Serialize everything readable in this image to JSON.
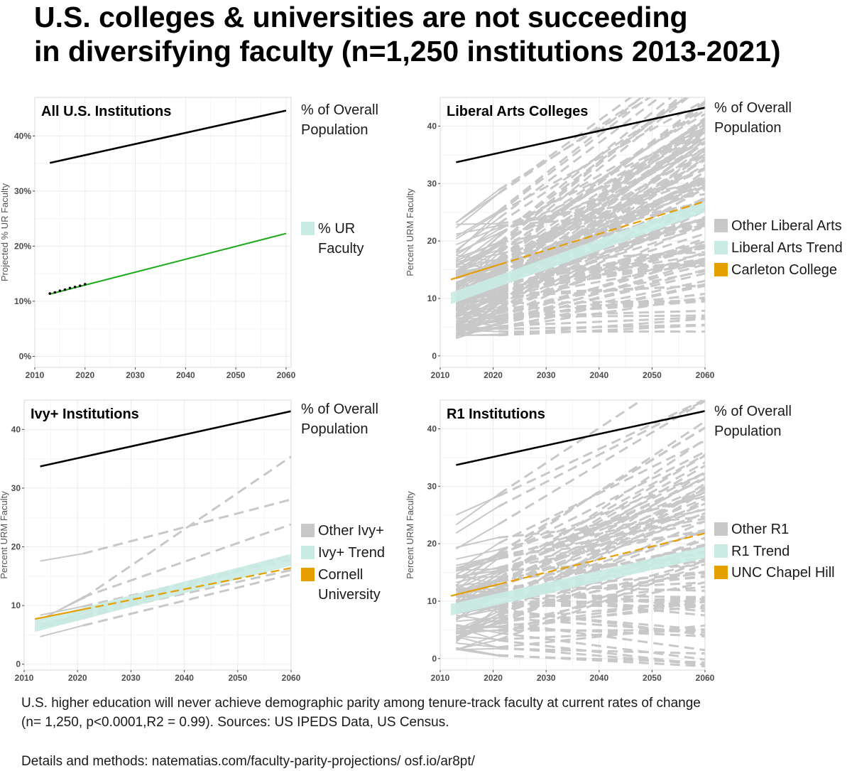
{
  "title": {
    "line1": "U.S. colleges & universities are not succeeding",
    "line2": "in diversifying faculty (n=1,250 institutions 2013-2021)"
  },
  "caption": {
    "line1": "U.S. higher education will never achieve demographic parity among tenure-track faculty at current rates of change",
    "line2": "(n= 1,250, p<0.0001,R2 = 0.99). Sources: US IPEDS Data, US Census.",
    "line3": "Details and methods: natematias.com/faculty-parity-projections/   osf.io/ar8pt/"
  },
  "colors": {
    "population": "#000000",
    "ur_faculty": "#1aaa1a",
    "other": "#c8c8c8",
    "trend": "#c9ebe3",
    "highlight": "#e69f00",
    "grid": "#ebebeb"
  },
  "chart_data": [
    {
      "type": "line",
      "panel_title": "All U.S. Institutions",
      "ylabel": "Projected % UR Faculty",
      "xlim": [
        2010,
        2061
      ],
      "ylim": [
        -2,
        47
      ],
      "x_ticks": [
        2010,
        2020,
        2030,
        2040,
        2050,
        2060
      ],
      "y_ticks": [
        0,
        10,
        20,
        30,
        40
      ],
      "y_tick_labels": [
        "0%",
        "10%",
        "20%",
        "30%",
        "40%"
      ],
      "legend": [
        {
          "label": "% of Overall\nPopulation",
          "kind": "header"
        },
        {
          "label": "% UR\nFaculty",
          "kind": "trend"
        }
      ],
      "population_line": {
        "x": [
          2013,
          2060
        ],
        "y": [
          35.1,
          44.6
        ]
      },
      "ur_faculty_line": {
        "x": [
          2013,
          2060
        ],
        "y": [
          11.3,
          22.3
        ]
      },
      "observed_points": {
        "x": [
          2013,
          2014,
          2015,
          2016,
          2017,
          2018,
          2019,
          2020
        ],
        "y": [
          11.4,
          11.6,
          11.9,
          12.1,
          12.4,
          12.6,
          12.8,
          13.1
        ]
      }
    },
    {
      "type": "line",
      "panel_title": "Liberal Arts Colleges",
      "ylabel": "Percent URM Faculty",
      "xlim": [
        2010,
        2060
      ],
      "ylim": [
        -2,
        45
      ],
      "x_ticks": [
        2010,
        2020,
        2030,
        2040,
        2050,
        2060
      ],
      "y_ticks": [
        0,
        10,
        20,
        30,
        40
      ],
      "y_tick_labels": [
        "0",
        "10",
        "20",
        "30",
        "40"
      ],
      "legend": [
        {
          "label": "% of Overall\nPopulation",
          "kind": "header"
        },
        {
          "label": "Other Liberal Arts",
          "kind": "other"
        },
        {
          "label": "Liberal Arts Trend",
          "kind": "trend"
        },
        {
          "label": "Carleton College",
          "kind": "highlight"
        }
      ],
      "population_line": {
        "x": [
          2013,
          2060
        ],
        "y": [
          33.7,
          43.2
        ]
      },
      "trend_band": {
        "x": [
          2012,
          2060
        ],
        "y": [
          10.0,
          26.0
        ],
        "halfwidth": 1.0
      },
      "highlight_line": {
        "x": [
          2012,
          2060
        ],
        "y": [
          13.3,
          26.9
        ],
        "observed_until": 2021
      },
      "other_density": "very_high"
    },
    {
      "type": "line",
      "panel_title": "Ivy+ Institutions",
      "ylabel": "Percent URM Faculty",
      "xlim": [
        2010,
        2060
      ],
      "ylim": [
        -1,
        45
      ],
      "x_ticks": [
        2010,
        2020,
        2030,
        2040,
        2050,
        2060
      ],
      "y_ticks": [
        0,
        10,
        20,
        30,
        40
      ],
      "y_tick_labels": [
        "0",
        "10",
        "20",
        "30",
        "40"
      ],
      "legend": [
        {
          "label": "% of Overall\nPopulation",
          "kind": "header"
        },
        {
          "label": "Other Ivy+",
          "kind": "other"
        },
        {
          "label": "Ivy+ Trend",
          "kind": "trend"
        },
        {
          "label": "Cornell\nUniversity",
          "kind": "highlight"
        }
      ],
      "population_line": {
        "x": [
          2013,
          2060
        ],
        "y": [
          33.7,
          43.1
        ]
      },
      "trend_band": {
        "x": [
          2012,
          2060
        ],
        "y": [
          6.5,
          17.8
        ],
        "halfwidth": 1.0
      },
      "highlight_line": {
        "x": [
          2012,
          2060
        ],
        "y": [
          7.7,
          16.4
        ],
        "observed_until": 2021
      },
      "other_density": "low"
    },
    {
      "type": "line",
      "panel_title": "R1 Institutions",
      "ylabel": "Percent URM Faculty",
      "xlim": [
        2010,
        2060
      ],
      "ylim": [
        -2,
        45
      ],
      "x_ticks": [
        2010,
        2020,
        2030,
        2040,
        2050,
        2060
      ],
      "y_ticks": [
        0,
        10,
        20,
        30,
        40
      ],
      "y_tick_labels": [
        "0",
        "10",
        "20",
        "30",
        "40"
      ],
      "legend": [
        {
          "label": "% of Overall\nPopulation",
          "kind": "header"
        },
        {
          "label": "Other R1",
          "kind": "other"
        },
        {
          "label": "R1 Trend",
          "kind": "trend"
        },
        {
          "label": "UNC Chapel Hill",
          "kind": "highlight"
        }
      ],
      "population_line": {
        "x": [
          2013,
          2060
        ],
        "y": [
          33.7,
          43.1
        ]
      },
      "trend_band": {
        "x": [
          2012,
          2060
        ],
        "y": [
          8.5,
          18.5
        ],
        "halfwidth": 1.0
      },
      "highlight_line": {
        "x": [
          2012,
          2060
        ],
        "y": [
          10.9,
          21.8
        ],
        "observed_until": 2021
      },
      "other_density": "high"
    }
  ]
}
